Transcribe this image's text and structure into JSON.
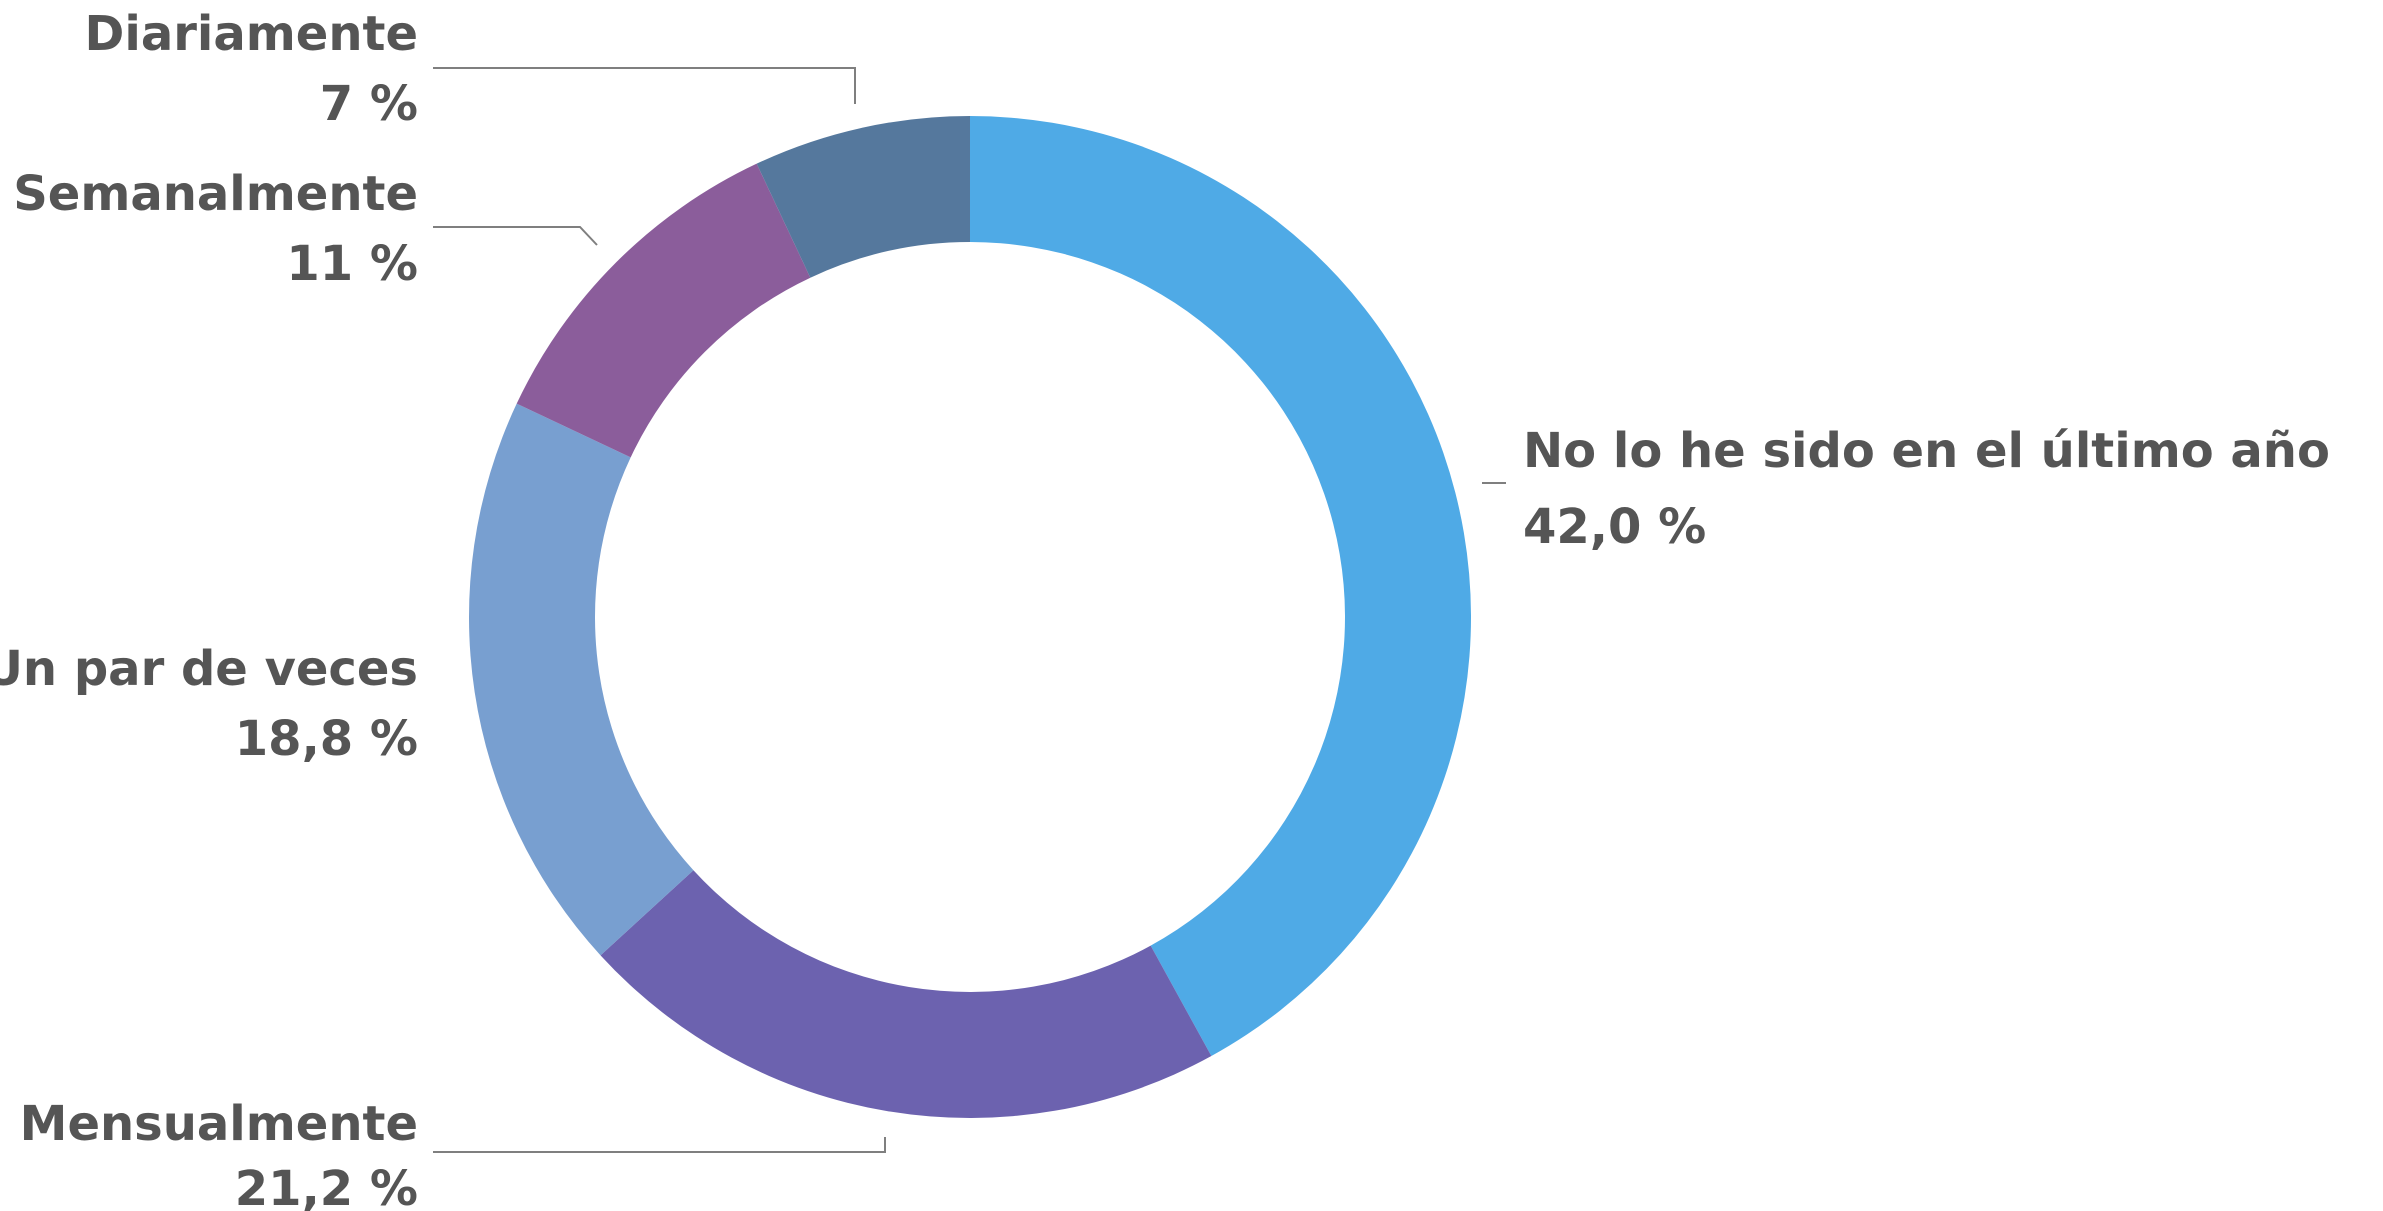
{
  "chart_data": {
    "type": "pie",
    "variant": "donut",
    "title": "",
    "slices": [
      {
        "label": "No lo he sido en el último año",
        "value": 42.0,
        "value_label": "42,0 %",
        "color": "#4faae6"
      },
      {
        "label": "Mensualmente",
        "value": 21.2,
        "value_label": "21,2 %",
        "color": "#6c62af"
      },
      {
        "label": "Un par de veces",
        "value": 18.8,
        "value_label": "18,8 %",
        "color": "#789fd0"
      },
      {
        "label": "Semanalmente",
        "value": 11,
        "value_label": "11 %",
        "color": "#8b5d9b"
      },
      {
        "label": "Diariamente",
        "value": 7,
        "value_label": "7 %",
        "color": "#55789d"
      }
    ],
    "start_angle": "12 o'clock",
    "direction": "clockwise",
    "legend": "none (labels next to slices)"
  }
}
